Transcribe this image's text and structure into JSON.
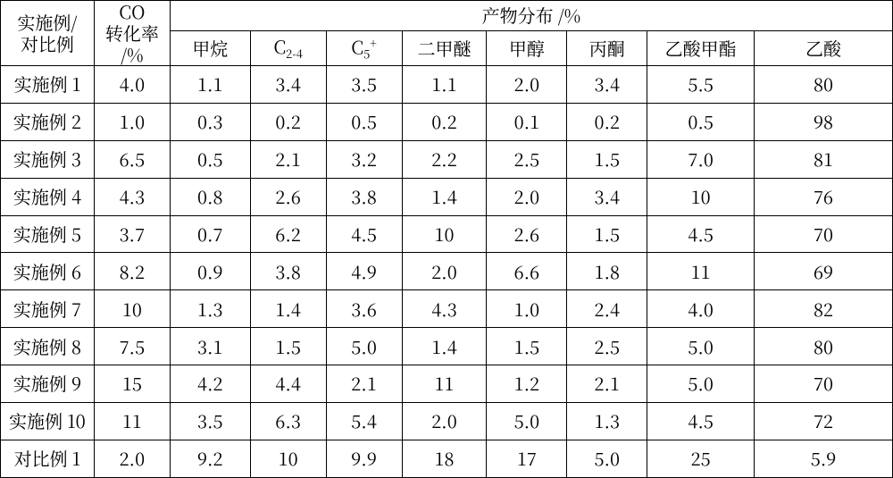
{
  "table": {
    "type": "table",
    "background_color": "#ffffff",
    "border_color": "#000000",
    "text_color": "#000000",
    "font_family": "SimSun / Songti SC / serif",
    "cell_fontsize": 20,
    "header_fontsize": 20,
    "column_widths_pct": [
      10.5,
      8.5,
      9.0,
      8.5,
      8.5,
      9.5,
      9.0,
      9.0,
      12.0,
      15.5
    ],
    "headers": {
      "col0_line1": "实施例/",
      "col0_line2": "对比例",
      "col1_line1": "CO",
      "col1_line2": "转化率",
      "col1_line3": "/%",
      "group": "产物分布  /%",
      "sub": {
        "c2_plain": "甲烷",
        "c3_base": "C",
        "c3_sub": "2-4",
        "c4_base": "C",
        "c4_sub": "5",
        "c4_sup": "+",
        "c5_plain": "二甲醚",
        "c6_plain": "甲醇",
        "c7_plain": "丙酮",
        "c8_plain": "乙酸甲酯",
        "c9_plain": "乙酸"
      }
    },
    "rows": [
      {
        "label": "实施例 1",
        "conv": "4.0",
        "v": [
          "1.1",
          "3.4",
          "3.5",
          "1.1",
          "2.0",
          "3.4",
          "5.5",
          "80"
        ]
      },
      {
        "label": "实施例 2",
        "conv": "1.0",
        "v": [
          "0.3",
          "0.2",
          "0.5",
          "0.2",
          "0.1",
          "0.2",
          "0.5",
          "98"
        ]
      },
      {
        "label": "实施例 3",
        "conv": "6.5",
        "v": [
          "0.5",
          "2.1",
          "3.2",
          "2.2",
          "2.5",
          "1.5",
          "7.0",
          "81"
        ]
      },
      {
        "label": "实施例 4",
        "conv": "4.3",
        "v": [
          "0.8",
          "2.6",
          "3.8",
          "1.4",
          "2.0",
          "3.4",
          "10",
          "76"
        ]
      },
      {
        "label": "实施例 5",
        "conv": "3.7",
        "v": [
          "0.7",
          "6.2",
          "4.5",
          "10",
          "2.6",
          "1.5",
          "4.5",
          "70"
        ]
      },
      {
        "label": "实施例 6",
        "conv": "8.2",
        "v": [
          "0.9",
          "3.8",
          "4.9",
          "2.0",
          "6.6",
          "1.8",
          "11",
          "69"
        ]
      },
      {
        "label": "实施例 7",
        "conv": "10",
        "v": [
          "1.3",
          "1.4",
          "3.6",
          "4.3",
          "1.0",
          "2.4",
          "4.0",
          "82"
        ]
      },
      {
        "label": "实施例 8",
        "conv": "7.5",
        "v": [
          "3.1",
          "1.5",
          "5.0",
          "1.4",
          "1.5",
          "2.5",
          "5.0",
          "80"
        ]
      },
      {
        "label": "实施例 9",
        "conv": "15",
        "v": [
          "4.2",
          "4.4",
          "2.1",
          "11",
          "1.2",
          "2.1",
          "5.0",
          "70"
        ]
      },
      {
        "label": "实施例 10",
        "conv": "11",
        "v": [
          "3.5",
          "6.3",
          "5.4",
          "2.0",
          "5.0",
          "1.3",
          "4.5",
          "72"
        ]
      },
      {
        "label": "对比例 1",
        "conv": "2.0",
        "v": [
          "9.2",
          "10",
          "9.9",
          "18",
          "17",
          "5.0",
          "25",
          "5.9"
        ]
      }
    ]
  }
}
